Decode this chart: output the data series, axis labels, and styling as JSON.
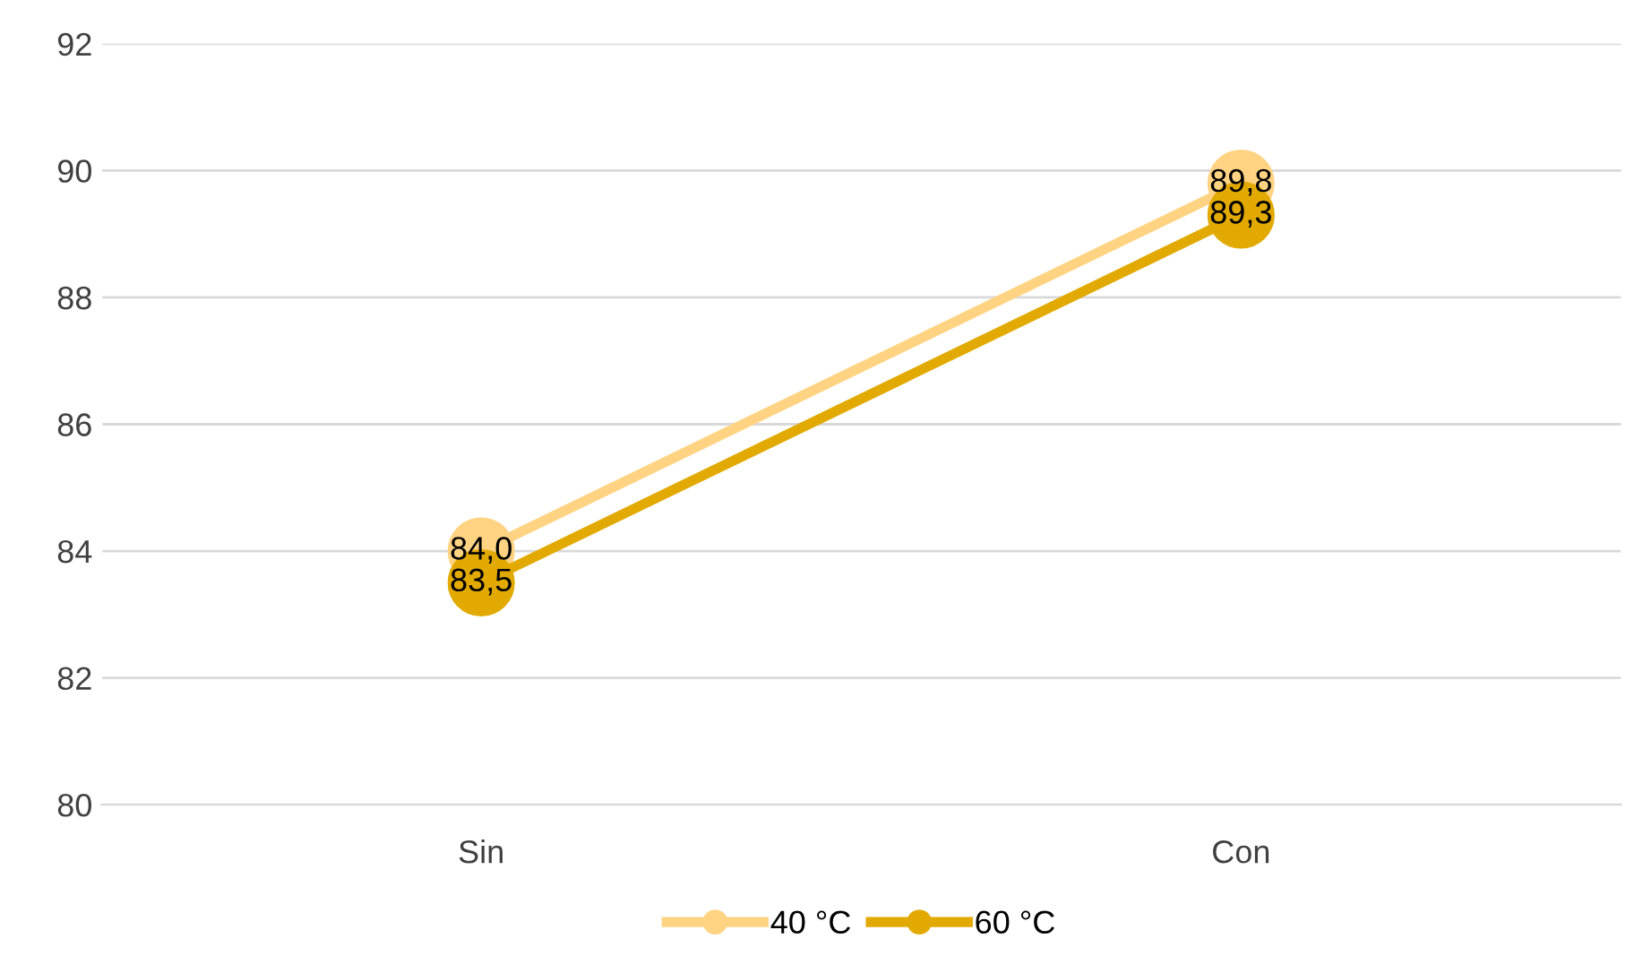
{
  "chart_data": {
    "type": "line",
    "categories": [
      "Sin",
      "Con"
    ],
    "series": [
      {
        "name": "40 °C",
        "color": "#ffd382",
        "values": [
          84.0,
          89.8
        ],
        "value_labels": [
          "84,0",
          "89,8"
        ]
      },
      {
        "name": "60 °C",
        "color": "#e2aa00",
        "values": [
          83.5,
          89.3
        ],
        "value_labels": [
          "83,5",
          "89,3"
        ]
      }
    ],
    "ylim": [
      80,
      92
    ],
    "yticks": [
      80,
      82,
      84,
      86,
      88,
      90,
      92
    ],
    "grid": "y",
    "legend": "bottom",
    "marker": "circle",
    "line_style": "solid"
  }
}
